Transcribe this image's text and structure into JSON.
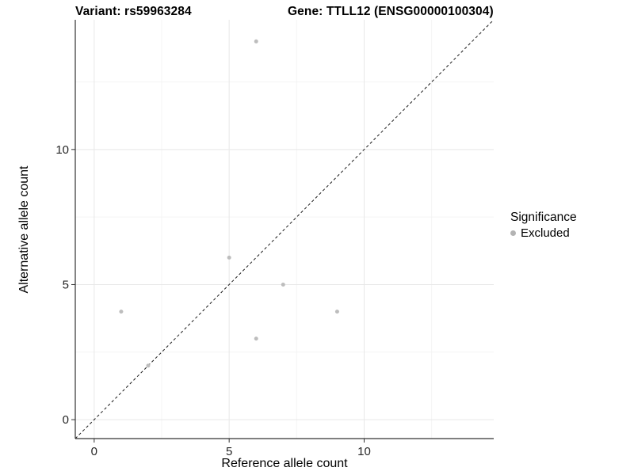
{
  "chart_data": {
    "type": "scatter",
    "title_left": "Variant: rs59963284",
    "title_right": "Gene: TTLL12 (ENSG00000100304)",
    "xlabel": "Reference allele count",
    "ylabel": "Alternative allele count",
    "xlim": [
      -0.7,
      14.8
    ],
    "ylim": [
      -0.7,
      14.8
    ],
    "x_ticks": [
      0,
      5,
      10
    ],
    "y_ticks": [
      0,
      5,
      10
    ],
    "x_minor_ticks": [
      2.5,
      7.5,
      12.5
    ],
    "y_minor_ticks": [
      2.5,
      7.5,
      12.5
    ],
    "grid": true,
    "identity_line": {
      "show": true,
      "style": "dashed",
      "color": "#1a1a1a"
    },
    "series": [
      {
        "name": "Excluded",
        "color": "#bdbdbd",
        "marker": "circle",
        "points": [
          [
            1,
            4
          ],
          [
            2,
            2
          ],
          [
            5,
            6
          ],
          [
            6,
            3
          ],
          [
            6,
            14
          ],
          [
            7,
            5
          ],
          [
            9,
            4
          ]
        ]
      }
    ],
    "legend": {
      "title": "Significance",
      "position": "right",
      "items": [
        {
          "label": "Excluded",
          "color": "#b3b3b3"
        }
      ]
    },
    "colors": {
      "grid_major": "#e8e8e8",
      "grid_minor": "#f4f4f4",
      "axis_line": "#333333",
      "tick_mark": "#333333",
      "tick_label": "#262626"
    }
  }
}
